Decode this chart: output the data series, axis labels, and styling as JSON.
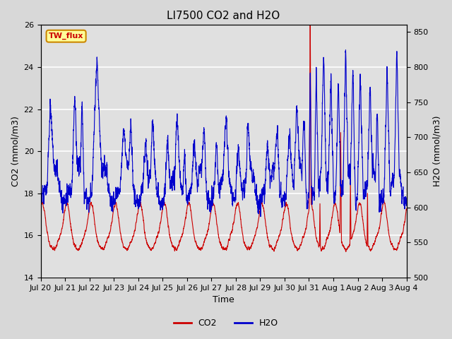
{
  "title": "LI7500 CO2 and H2O",
  "xlabel": "Time",
  "ylabel_left": "CO2 (mmol/m3)",
  "ylabel_right": "H2O (mmol/m3)",
  "ylim_left": [
    14,
    26
  ],
  "ylim_right": [
    500,
    860
  ],
  "yticks_left": [
    14,
    16,
    18,
    20,
    22,
    24,
    26
  ],
  "yticks_right": [
    500,
    550,
    600,
    650,
    700,
    750,
    800,
    850
  ],
  "xtick_labels": [
    "Jul 20",
    "Jul 21",
    "Jul 22",
    "Jul 23",
    "Jul 24",
    "Jul 25",
    "Jul 26",
    "Jul 27",
    "Jul 28",
    "Jul 29",
    "Jul 30",
    "Jul 31",
    "Aug 1",
    "Aug 2",
    "Aug 3",
    "Aug 4"
  ],
  "fig_bg_color": "#d8d8d8",
  "plot_bg_color": "#e0e0e0",
  "grid_color": "#c8c8c8",
  "co2_color": "#cc0000",
  "h2o_color": "#0000cc",
  "co2_linewidth": 0.8,
  "h2o_linewidth": 0.8,
  "tag_text": "TW_flux",
  "tag_bg": "#ffff99",
  "tag_border": "#cc8800",
  "tag_text_color": "#cc0000",
  "legend_co2": "CO2",
  "legend_h2o": "H2O",
  "title_fontsize": 11,
  "axis_label_fontsize": 9,
  "tick_fontsize": 8,
  "n_points": 4608,
  "days": 15
}
